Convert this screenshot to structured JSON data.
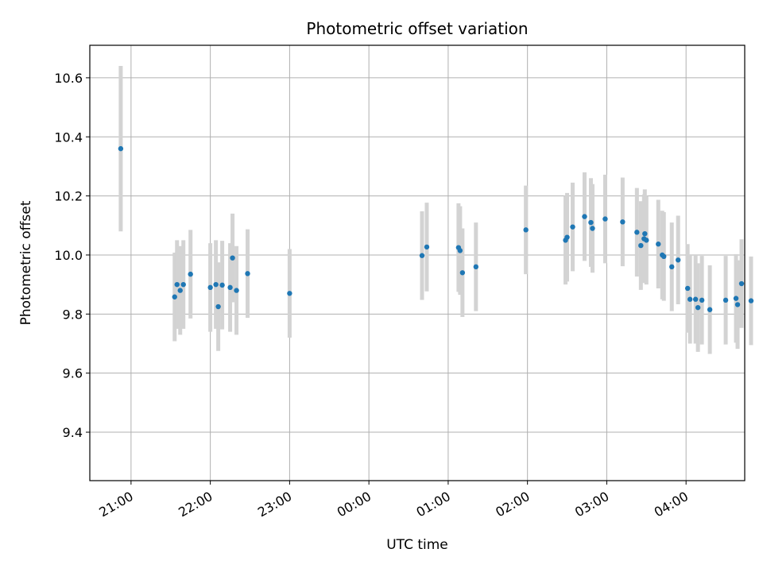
{
  "chart_data": {
    "type": "scatter",
    "title": "Photometric offset variation",
    "xlabel": "UTC time",
    "ylabel": "Photometric offset",
    "x_ticks": [
      "21:00",
      "22:00",
      "23:00",
      "00:00",
      "01:00",
      "02:00",
      "03:00",
      "04:00"
    ],
    "y_ticks": [
      "9.4",
      "9.6",
      "9.8",
      "10.0",
      "10.2",
      "10.4",
      "10.6"
    ],
    "xlim_hours": [
      20.48,
      28.74
    ],
    "ylim": [
      9.236,
      10.71
    ],
    "grid": true,
    "colors": {
      "point": "#1f77b4",
      "errorbar": "#d3d3d3",
      "grid": "#b0b0b0"
    },
    "series": [
      {
        "x_hours": [
          20.87,
          21.55,
          21.58,
          21.62,
          21.66,
          21.75,
          22.0,
          22.07,
          22.1,
          22.15,
          22.25,
          22.28,
          22.33,
          22.47,
          23.0,
          24.67,
          24.73,
          25.13,
          25.15,
          25.18,
          25.35,
          25.98,
          26.48,
          26.5,
          26.57,
          26.72,
          26.8,
          26.82,
          26.98,
          27.2,
          27.38,
          27.43,
          27.47,
          27.48,
          27.5,
          27.65,
          27.7,
          27.72,
          27.82,
          27.9,
          28.02,
          28.05,
          28.12,
          28.15,
          28.2,
          28.3,
          28.5,
          28.63,
          28.65,
          28.7,
          28.82
        ],
        "y": [
          10.36,
          9.858,
          9.9,
          9.88,
          9.9,
          9.935,
          9.89,
          9.9,
          9.825,
          9.898,
          9.89,
          9.99,
          9.88,
          9.937,
          9.87,
          9.998,
          10.027,
          10.025,
          10.015,
          9.94,
          9.96,
          10.085,
          10.05,
          10.06,
          10.095,
          10.13,
          10.11,
          10.09,
          10.122,
          10.112,
          10.077,
          10.032,
          10.055,
          10.072,
          10.05,
          10.037,
          10.0,
          9.995,
          9.96,
          9.983,
          9.887,
          9.85,
          9.85,
          9.822,
          9.847,
          9.815,
          9.847,
          9.853,
          9.832,
          9.903,
          9.845
        ]
      }
    ]
  }
}
